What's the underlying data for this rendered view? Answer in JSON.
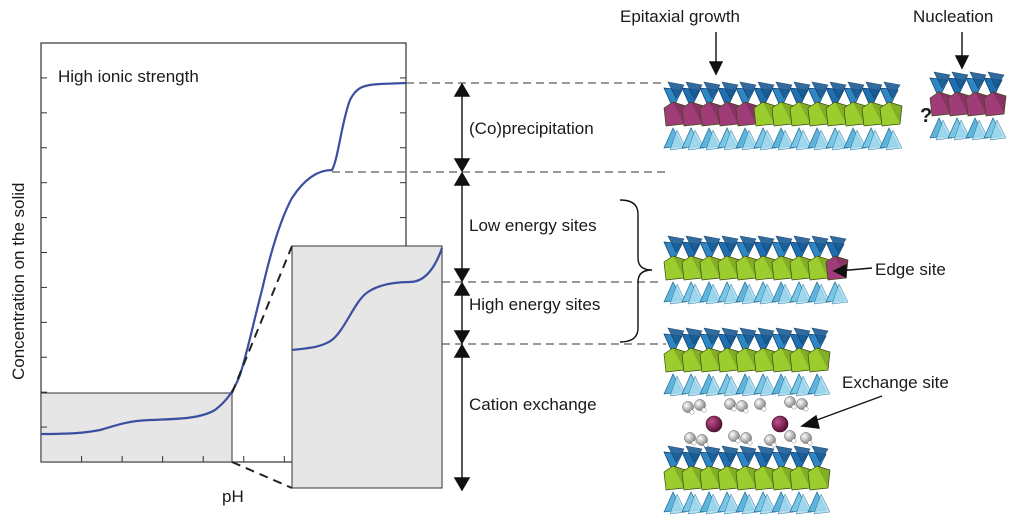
{
  "plot": {
    "panel_title": "High ionic strength",
    "y_axis_label": "Concentration on the solid",
    "x_axis_label": "pH",
    "curve_color": "#3a4fa0",
    "inset_fill": "#e6e6e6"
  },
  "regions": {
    "coprecipitation": "(Co)precipitation",
    "low_energy": "Low energy sites",
    "high_energy": "High energy sites",
    "cation_exchange": "Cation exchange"
  },
  "structures": {
    "epitaxial_label": "Epitaxial growth",
    "nucleation_label": "Nucleation",
    "question_mark": "?",
    "edge_site_label": "Edge site",
    "exchange_site_label": "Exchange site"
  },
  "colors": {
    "tetra_dark": "#1f6fb0",
    "tetra_light": "#79c6e6",
    "octa_green": "#9ccd2e",
    "octa_magenta": "#a03c78",
    "cation": "#7a2250",
    "water": "#cfcfcf"
  }
}
